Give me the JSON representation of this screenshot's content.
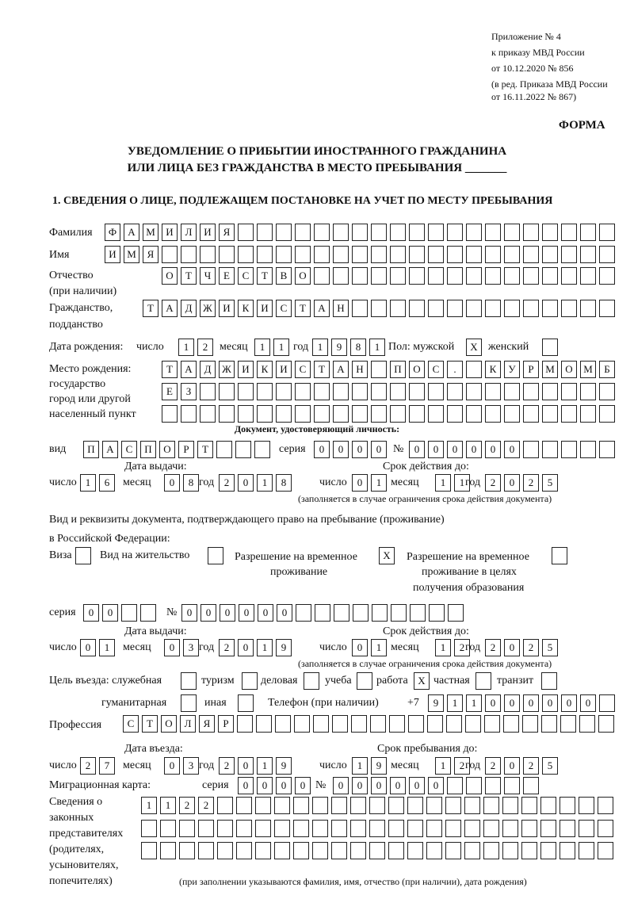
{
  "header": {
    "appendix": "Приложение № 4",
    "order": "к приказу МВД России",
    "order_date": "от 10.12.2020 № 856",
    "edition1": "(в ред. Приказа МВД России",
    "edition2": "от 16.11.2022 № 867)",
    "form": "ФОРМА",
    "title1": "УВЕДОМЛЕНИЕ О ПРИБЫТИИ ИНОСТРАННОГО ГРАЖДАНИНА",
    "title2": "ИЛИ ЛИЦА БЕЗ ГРАЖДАНСТВА В МЕСТО ПРЕБЫВАНИЯ _______",
    "section1": "1. СВЕДЕНИЯ О ЛИЦЕ, ПОДЛЕЖАЩЕМ ПОСТАНОВКЕ НА УЧЕТ ПО МЕСТУ ПРЕБЫВАНИЯ"
  },
  "labels": {
    "surname": "Фамилия",
    "name": "Имя",
    "patronymic": "Отчество",
    "patronymic2": "(при наличии)",
    "citizenship": "Гражданство,",
    "citizenship2": "подданство",
    "birth_date": "Дата рождения:",
    "day": "число",
    "month": "месяц",
    "year": "год",
    "sex": "Пол: мужской",
    "female": "женский",
    "birthplace": "Место рождения:",
    "birthplace2": "государство",
    "birthplace3": "город или другой",
    "birthplace4": "населенный пункт",
    "id_doc": "Документ, удостоверяющий личность:",
    "kind": "вид",
    "series": "серия",
    "number": "№",
    "issue_date": "Дата выдачи:",
    "valid_until": "Срок действия до:",
    "validity_note": "(заполняется в случае ограничения срока действия документа)",
    "right_doc1": "Вид и реквизиты документа, подтверждающего право на пребывание (проживание)",
    "right_doc2": "в Российской Федерации:",
    "visa": "Виза",
    "residence": "Вид на жительство",
    "temp1": "Разрешение на временное",
    "temp2": "проживание",
    "edu1": "Разрешение на временное",
    "edu2": "проживание в целях",
    "edu3": "получения образования",
    "purpose": "Цель въезда: служебная",
    "tourism": "туризм",
    "business": "деловая",
    "study": "учеба",
    "work": "работа",
    "private": "частная",
    "transit": "транзит",
    "humanitarian": "гуманитарная",
    "other": "иная",
    "phone": "Телефон (при наличии)",
    "phone_prefix": "+7",
    "profession": "Профессия",
    "entry_date": "Дата въезда:",
    "stay_until": "Срок пребывания до:",
    "migration_card": "Миграционная карта:",
    "reps1": "Сведения о",
    "reps2": "законных",
    "reps3": "представителях",
    "reps4": "(родителях,",
    "reps5": "усыновителях,",
    "reps6": "попечителях)",
    "reps_note": "(при заполнении указываются фамилия, имя, отчество (при наличии), дата рождения)"
  },
  "fields": {
    "surname": "ФАМИЛИЯ",
    "name": "ИМЯ",
    "patronymic": "ОТЧЕСТВО",
    "citizenship": "ТАДЖИКИСТАН",
    "birth_day": "12",
    "birth_month": "11",
    "birth_year": "1981",
    "sex_male": "X",
    "sex_female": "",
    "birthplace1": "ТАДЖИКИСТАН ПОС. КУРМОМБ",
    "birthplace2": "ЕЗ",
    "birthplace3": "",
    "doc_kind": "ПАСПОРТ",
    "doc_series": "0000",
    "doc_number": "000000",
    "doc_issue_day": "16",
    "doc_issue_month": "08",
    "doc_issue_year": "2018",
    "doc_valid_day": "01",
    "doc_valid_month": "11",
    "doc_valid_year": "2025",
    "visa": "",
    "residence": "",
    "temp_residence": "X",
    "edu_residence": "",
    "right_series": "00",
    "right_number": "000000",
    "right_issue_day": "01",
    "right_issue_month": "03",
    "right_issue_year": "2019",
    "right_valid_day": "01",
    "right_valid_month": "12",
    "right_valid_year": "2025",
    "p_service": "",
    "p_tourism": "",
    "p_business": "",
    "p_study": "",
    "p_work": "X",
    "p_private": "",
    "p_transit": "",
    "p_humanitarian": "",
    "p_other": "",
    "phone": "911000000",
    "profession": "СТОЛЯР",
    "entry_day": "27",
    "entry_month": "03",
    "entry_year": "2019",
    "stay_day": "19",
    "stay_month": "12",
    "stay_year": "2025",
    "mc_series": "0000",
    "mc_number": "000000",
    "reps1": "1122",
    "reps2": "",
    "reps3": ""
  }
}
